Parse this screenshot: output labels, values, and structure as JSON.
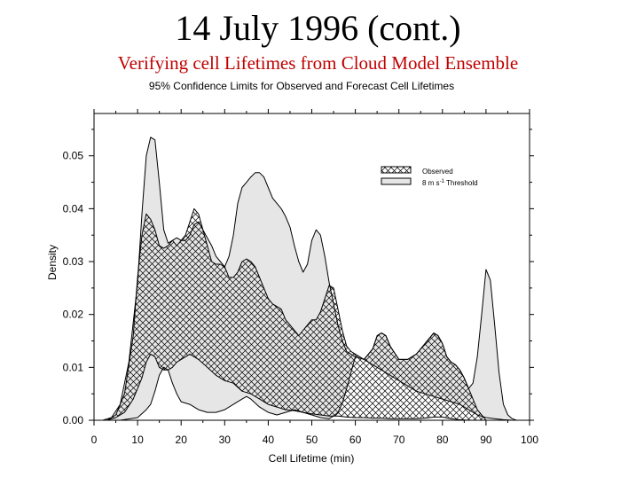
{
  "page": {
    "title": "14 July 1996 (cont.)",
    "subtitle": "Verifying cell Lifetimes from Cloud Model Ensemble"
  },
  "colors": {
    "subtitle": "#c00000",
    "band_fill": "#e6e6e6",
    "line": "#000000"
  },
  "chart_data": {
    "type": "area",
    "title": "95% Confidence Limits for Observed and Forecast Cell Lifetimes",
    "xlabel": "Cell Lifetime (min)",
    "ylabel": "Density",
    "xlim": [
      0,
      100
    ],
    "ylim": [
      0,
      0.058
    ],
    "xticks": [
      0,
      10,
      20,
      30,
      40,
      50,
      60,
      70,
      80,
      90,
      100
    ],
    "xtick_labels": [
      "0",
      "10",
      "20",
      "30",
      "40",
      "50",
      "60",
      "70",
      "80",
      "90",
      "100"
    ],
    "yticks": [
      0,
      0.01,
      0.02,
      0.03,
      0.04,
      0.05
    ],
    "ytick_labels": [
      "0.00",
      "0.01",
      "0.02",
      "0.03",
      "0.04",
      "0.05"
    ],
    "legend": {
      "placement": "top-right",
      "entries": [
        {
          "label": "Observed",
          "style": "crosshatch"
        },
        {
          "label_main": "8 m s",
          "label_sup": "-1",
          "label_tail": " Threshold",
          "style": "gray"
        }
      ]
    },
    "series": [
      {
        "style": "gray",
        "upper": {
          "x": [
            2,
            4,
            6,
            8,
            10,
            11,
            12,
            13,
            14,
            15,
            16,
            17,
            18,
            19,
            20,
            21,
            22,
            23,
            24,
            25,
            26,
            27,
            28,
            29,
            30,
            31,
            32,
            33,
            34,
            35,
            36,
            37,
            38,
            39,
            40,
            41,
            42,
            43,
            44,
            45,
            46,
            47,
            48,
            49,
            50,
            51,
            52,
            53,
            54,
            55,
            56,
            57,
            58,
            59,
            60
          ],
          "y": [
            0.0,
            0.0005,
            0.003,
            0.011,
            0.026,
            0.039,
            0.05,
            0.0535,
            0.053,
            0.045,
            0.036,
            0.0335,
            0.034,
            0.0345,
            0.034,
            0.034,
            0.035,
            0.037,
            0.0375,
            0.036,
            0.0345,
            0.033,
            0.031,
            0.03,
            0.029,
            0.031,
            0.035,
            0.041,
            0.044,
            0.045,
            0.046,
            0.0468,
            0.0468,
            0.046,
            0.044,
            0.042,
            0.041,
            0.04,
            0.0385,
            0.0365,
            0.033,
            0.03,
            0.028,
            0.0295,
            0.034,
            0.036,
            0.035,
            0.031,
            0.026,
            0.022,
            0.018,
            0.015,
            0.013,
            0.0125,
            0.012
          ]
        },
        "lower": {
          "x": [
            2,
            6,
            10,
            12,
            13,
            14,
            15,
            16,
            17,
            18,
            19,
            20,
            22,
            24,
            26,
            28,
            30,
            32,
            33,
            34,
            35,
            36,
            38,
            40,
            42,
            44,
            46,
            48,
            50,
            52,
            54,
            55,
            56,
            57,
            58,
            59,
            60
          ],
          "y": [
            0.0,
            0.0,
            0.0005,
            0.002,
            0.003,
            0.0055,
            0.0085,
            0.01,
            0.0095,
            0.007,
            0.005,
            0.0035,
            0.003,
            0.002,
            0.0015,
            0.0015,
            0.002,
            0.003,
            0.0035,
            0.004,
            0.0045,
            0.004,
            0.0025,
            0.0015,
            0.001,
            0.0015,
            0.002,
            0.0015,
            0.001,
            0.0005,
            0.0003,
            0.0008,
            0.0015,
            0.0032,
            0.006,
            0.009,
            0.012
          ]
        }
      },
      {
        "style": "gray",
        "upper": {
          "x": [
            60,
            62,
            64,
            65,
            66,
            67,
            68,
            70,
            72,
            73,
            74,
            75,
            76,
            77,
            78,
            79,
            80,
            81,
            82,
            83,
            84,
            85,
            86,
            87,
            88,
            89,
            90,
            91,
            92,
            93,
            94,
            95,
            96,
            97
          ],
          "y": [
            0.012,
            0.0115,
            0.0135,
            0.016,
            0.0165,
            0.016,
            0.014,
            0.0115,
            0.0115,
            0.012,
            0.0125,
            0.0135,
            0.0145,
            0.0155,
            0.0165,
            0.016,
            0.0145,
            0.012,
            0.011,
            0.0105,
            0.0095,
            0.008,
            0.006,
            0.007,
            0.012,
            0.02,
            0.0285,
            0.0265,
            0.018,
            0.009,
            0.003,
            0.001,
            0.0003,
            0.0
          ]
        },
        "lower": {
          "x": [
            60,
            62,
            64,
            66,
            68,
            70,
            72,
            74,
            76,
            78,
            80,
            82,
            84,
            86,
            88,
            90,
            92,
            94,
            96,
            97
          ],
          "y": [
            0.012,
            0.0115,
            0.0105,
            0.0095,
            0.0085,
            0.0075,
            0.0065,
            0.0055,
            0.005,
            0.0045,
            0.004,
            0.0035,
            0.003,
            0.002,
            0.001,
            0.0005,
            0.0003,
            0.0001,
            0.0,
            0.0
          ]
        }
      },
      {
        "style": "crosshatch",
        "upper": {
          "x": [
            3,
            5,
            7,
            9,
            10,
            11,
            12,
            13,
            14,
            15,
            16,
            17,
            18,
            19,
            20,
            21,
            22,
            23,
            24,
            25,
            26,
            27,
            28,
            29,
            30,
            31,
            32,
            33,
            34,
            35,
            36,
            37,
            38,
            39,
            40,
            41,
            42,
            43,
            44,
            45,
            46,
            47,
            48,
            49,
            50,
            51,
            52,
            53,
            54,
            55,
            56,
            57,
            58,
            59,
            60,
            62,
            64,
            65,
            66,
            67,
            68,
            70,
            72,
            73,
            74,
            75,
            76,
            77,
            78,
            79,
            80,
            81,
            82,
            83,
            84,
            85,
            86,
            87,
            88,
            89,
            90
          ],
          "y": [
            0.0,
            0.001,
            0.005,
            0.016,
            0.027,
            0.035,
            0.039,
            0.038,
            0.036,
            0.033,
            0.0325,
            0.033,
            0.034,
            0.033,
            0.034,
            0.035,
            0.0375,
            0.04,
            0.039,
            0.036,
            0.033,
            0.03,
            0.0295,
            0.0295,
            0.029,
            0.027,
            0.027,
            0.028,
            0.03,
            0.0305,
            0.03,
            0.029,
            0.027,
            0.025,
            0.023,
            0.022,
            0.0215,
            0.021,
            0.019,
            0.018,
            0.017,
            0.016,
            0.017,
            0.018,
            0.019,
            0.019,
            0.0205,
            0.023,
            0.0255,
            0.025,
            0.021,
            0.017,
            0.014,
            0.013,
            0.0125,
            0.0115,
            0.0135,
            0.016,
            0.0165,
            0.016,
            0.014,
            0.0115,
            0.0115,
            0.012,
            0.0125,
            0.0135,
            0.0145,
            0.0155,
            0.0165,
            0.016,
            0.0145,
            0.012,
            0.011,
            0.0105,
            0.0095,
            0.008,
            0.006,
            0.004,
            0.002,
            0.001,
            0.0
          ]
        },
        "lower": {
          "x": [
            3,
            5,
            7,
            9,
            10,
            11,
            12,
            13,
            14,
            15,
            16,
            17,
            18,
            19,
            20,
            22,
            24,
            26,
            28,
            30,
            32,
            34,
            36,
            38,
            40,
            42,
            44,
            46,
            48,
            50,
            52,
            54,
            56,
            58,
            60,
            62,
            64,
            66,
            68,
            70,
            72,
            74,
            76,
            78,
            80,
            82,
            84,
            86,
            88,
            90
          ],
          "y": [
            0.0,
            0.0005,
            0.0015,
            0.004,
            0.006,
            0.008,
            0.011,
            0.0125,
            0.012,
            0.01,
            0.0095,
            0.0095,
            0.01,
            0.011,
            0.0115,
            0.0125,
            0.0115,
            0.01,
            0.0085,
            0.0075,
            0.007,
            0.0055,
            0.005,
            0.004,
            0.003,
            0.0025,
            0.002,
            0.0018,
            0.0015,
            0.0012,
            0.001,
            0.0008,
            0.0008,
            0.0006,
            0.0005,
            0.0005,
            0.0004,
            0.0004,
            0.0003,
            0.0003,
            0.0003,
            0.0003,
            0.0004,
            0.0006,
            0.0006,
            0.0003,
            0.0001,
            0.0,
            0.0,
            0.0
          ]
        }
      }
    ]
  }
}
